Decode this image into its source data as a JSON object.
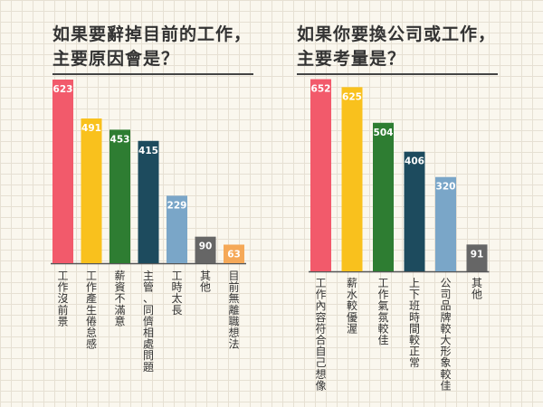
{
  "charts": [
    {
      "title_line1": "如果要辭掉目前的工作，",
      "title_line2": "主要原因會是？"
    },
    {
      "title_line1": "如果你要換公司或工作，",
      "title_line2": "主要考量是？"
    }
  ],
  "chart_data": [
    {
      "type": "bar",
      "title": "如果要辭掉目前的工作，主要原因會是？",
      "categories": [
        "工作沒前景",
        "工作產生倦怠感",
        "薪資不滿意",
        "主管、同儕相處問題",
        "工時太長",
        "其他",
        "目前無離職想法"
      ],
      "values": [
        623,
        491,
        453,
        415,
        229,
        90,
        63
      ],
      "colors": [
        "#f25a6b",
        "#f9c11d",
        "#2e7d32",
        "#1d4b5e",
        "#7aa6c8",
        "#666666",
        "#f5a857"
      ],
      "ylim": [
        0,
        700
      ],
      "xlabel": "",
      "ylabel": "",
      "grid": false
    },
    {
      "type": "bar",
      "title": "如果你要換公司或工作，主要考量是？",
      "categories": [
        "工作內容符合自己想像",
        "薪水較優渥",
        "工作氣氛較佳",
        "上下班時間較正常",
        "公司品牌較大形象較佳",
        "其他"
      ],
      "values": [
        652,
        625,
        504,
        406,
        320,
        91
      ],
      "colors": [
        "#f25a6b",
        "#f9c11d",
        "#2e7d32",
        "#1d4b5e",
        "#7aa6c8",
        "#666666"
      ],
      "ylim": [
        0,
        700
      ],
      "xlabel": "",
      "ylabel": "",
      "grid": false
    }
  ]
}
